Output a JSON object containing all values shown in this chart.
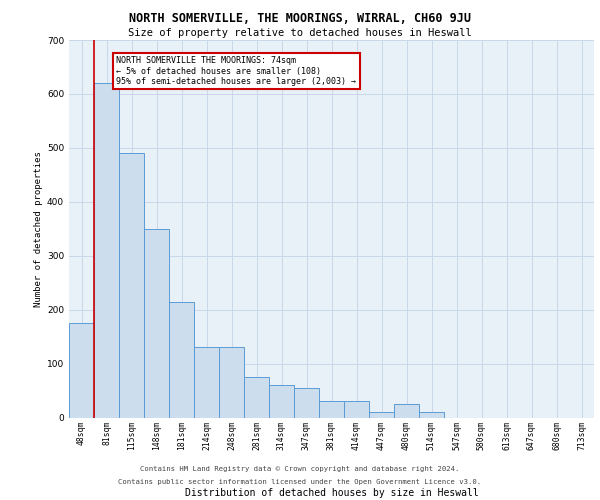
{
  "title1": "NORTH SOMERVILLE, THE MOORINGS, WIRRAL, CH60 9JU",
  "title2": "Size of property relative to detached houses in Heswall",
  "xlabel": "Distribution of detached houses by size in Heswall",
  "ylabel": "Number of detached properties",
  "categories": [
    "48sqm",
    "81sqm",
    "115sqm",
    "148sqm",
    "181sqm",
    "214sqm",
    "248sqm",
    "281sqm",
    "314sqm",
    "347sqm",
    "381sqm",
    "414sqm",
    "447sqm",
    "480sqm",
    "514sqm",
    "547sqm",
    "580sqm",
    "613sqm",
    "647sqm",
    "680sqm",
    "713sqm"
  ],
  "values": [
    175,
    620,
    490,
    350,
    215,
    130,
    130,
    75,
    60,
    55,
    30,
    30,
    10,
    25,
    10,
    0,
    0,
    0,
    0,
    0,
    0
  ],
  "bar_color": "#ccdded",
  "bar_edge_color": "#5b9bd5",
  "vline_color": "#cc0000",
  "annotation_text": "NORTH SOMERVILLE THE MOORINGS: 74sqm\n← 5% of detached houses are smaller (108)\n95% of semi-detached houses are larger (2,003) →",
  "annotation_box_color": "#ffffff",
  "annotation_box_edge": "#cc0000",
  "footer1": "Contains HM Land Registry data © Crown copyright and database right 2024.",
  "footer2": "Contains public sector information licensed under the Open Government Licence v3.0.",
  "ylim": [
    0,
    700
  ],
  "yticks": [
    0,
    100,
    200,
    300,
    400,
    500,
    600,
    700
  ],
  "grid_color": "#c8d8e8",
  "bg_color": "#e8f0f8"
}
